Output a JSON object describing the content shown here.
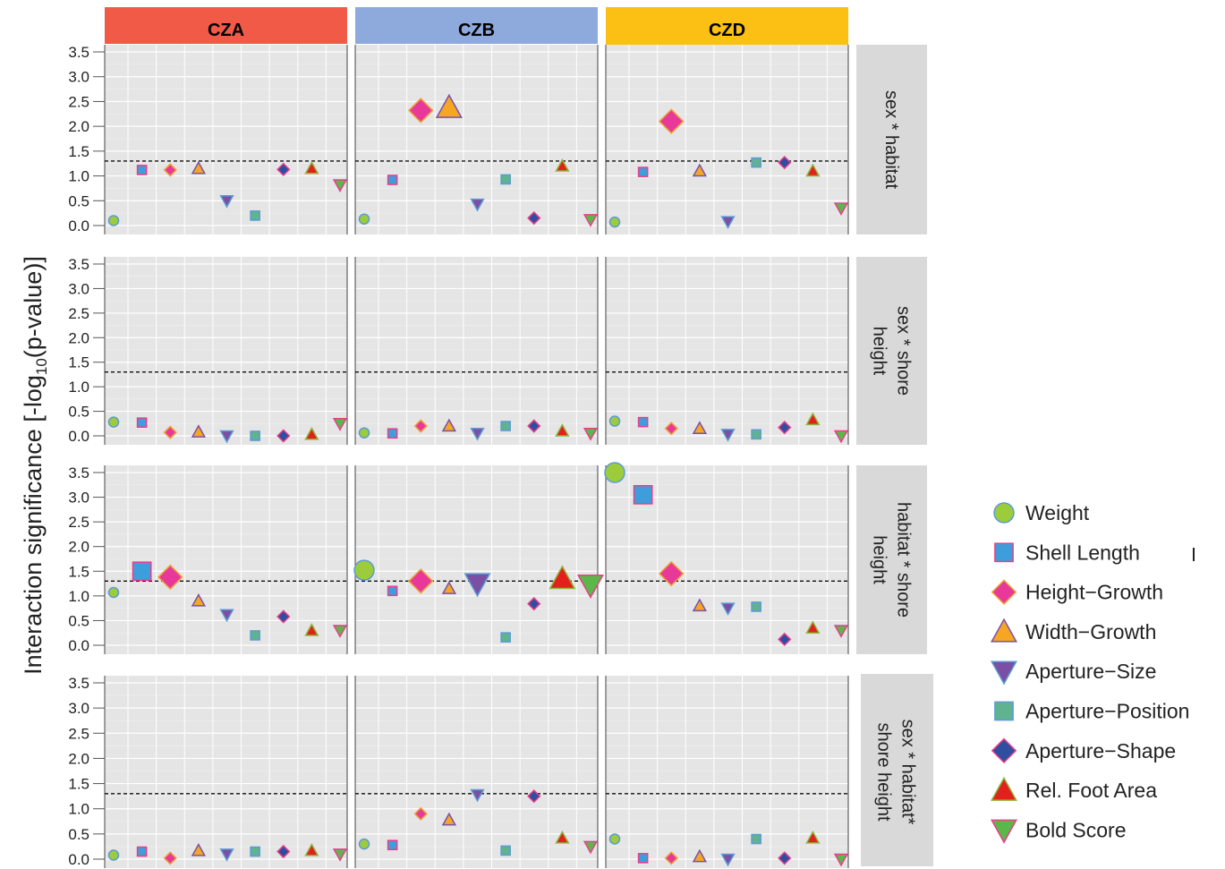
{
  "chart_data": {
    "type": "scatter",
    "ylabel_pre": "Interaction significance [-log",
    "ylabel_sub": "10",
    "ylabel_post": "(p-value)]",
    "ylim": [
      0,
      3.6
    ],
    "yticks": [
      "0.0",
      "0.5",
      "1.0",
      "1.5",
      "2.0",
      "2.5",
      "3.0",
      "3.5"
    ],
    "threshold": 1.3,
    "grid": true,
    "legend_position": "right",
    "columns": [
      {
        "label": "CZA",
        "color": "#f15a47"
      },
      {
        "label": "CZB",
        "color": "#8ea9db"
      },
      {
        "label": "CZD",
        "color": "#fbc013"
      }
    ],
    "rows": [
      {
        "label_lines": [
          "sex * habitat"
        ]
      },
      {
        "label_lines": [
          "sex * shore",
          "height"
        ]
      },
      {
        "label_lines": [
          "habitat * shore",
          "height"
        ]
      },
      {
        "label_lines": [
          "sex * habitat*",
          "shore height"
        ]
      }
    ],
    "traits": [
      {
        "name": "Weight",
        "shape": "circle",
        "fill": "#9ccc3c",
        "stroke": "#5b9bd5"
      },
      {
        "name": "Shell Length",
        "shape": "square",
        "fill": "#3e9edb",
        "stroke": "#e83e8c"
      },
      {
        "name": "Height−Growth",
        "shape": "diamond",
        "fill": "#e8399a",
        "stroke": "#f0a030"
      },
      {
        "name": "Width−Growth",
        "shape": "triangle-up",
        "fill": "#f5a623",
        "stroke": "#7a52a8"
      },
      {
        "name": "Aperture−Size",
        "shape": "triangle-down",
        "fill": "#7b4fa3",
        "stroke": "#5b9bd5"
      },
      {
        "name": "Aperture−Position",
        "shape": "square",
        "fill": "#5fb38f",
        "stroke": "#5b9bd5"
      },
      {
        "name": "Aperture−Shape",
        "shape": "diamond",
        "fill": "#2f4ea0",
        "stroke": "#e83e8c"
      },
      {
        "name": "Rel. Foot Area",
        "shape": "triangle-up",
        "fill": "#e3201b",
        "stroke": "#8db63c"
      },
      {
        "name": "Bold Score",
        "shape": "triangle-down",
        "fill": "#5ab849",
        "stroke": "#e83e8c"
      }
    ],
    "values": [
      [
        [
          0.1,
          1.12,
          1.12,
          1.15,
          0.5,
          0.2,
          1.13,
          1.15,
          0.82
        ],
        [
          0.13,
          0.92,
          2.32,
          2.38,
          0.43,
          0.93,
          0.15,
          1.2,
          0.12
        ],
        [
          0.07,
          1.08,
          2.1,
          1.1,
          0.08,
          1.27,
          1.27,
          1.1,
          0.35
        ]
      ],
      [
        [
          0.28,
          0.27,
          0.07,
          0.08,
          0.0,
          0.0,
          0.0,
          0.03,
          0.25
        ],
        [
          0.06,
          0.05,
          0.2,
          0.2,
          0.05,
          0.2,
          0.2,
          0.1,
          0.05
        ],
        [
          0.3,
          0.28,
          0.15,
          0.15,
          0.03,
          0.03,
          0.17,
          0.33,
          0.0
        ]
      ],
      [
        [
          1.07,
          1.5,
          1.38,
          0.9,
          0.62,
          0.2,
          0.58,
          0.3,
          0.3
        ],
        [
          1.52,
          1.1,
          1.3,
          1.15,
          1.25,
          0.16,
          0.84,
          1.35,
          1.22
        ],
        [
          3.5,
          3.05,
          1.45,
          0.8,
          0.75,
          0.78,
          0.12,
          0.35,
          0.3
        ]
      ],
      [
        [
          0.08,
          0.15,
          0.02,
          0.17,
          0.1,
          0.15,
          0.15,
          0.17,
          0.1
        ],
        [
          0.3,
          0.28,
          0.9,
          0.78,
          1.28,
          0.17,
          1.25,
          0.42,
          0.25
        ],
        [
          0.4,
          0.02,
          0.02,
          0.05,
          0.0,
          0.4,
          0.02,
          0.42,
          0.0
        ]
      ]
    ],
    "sizes": [
      [
        [
          1,
          1,
          1,
          1,
          1,
          1,
          1,
          1,
          1
        ],
        [
          1,
          1,
          2,
          2,
          1,
          1,
          1,
          1,
          1
        ],
        [
          1,
          1,
          2,
          1,
          1,
          1,
          1,
          1,
          1
        ]
      ],
      [
        [
          1,
          1,
          1,
          1,
          1,
          1,
          1,
          1,
          1
        ],
        [
          1,
          1,
          1,
          1,
          1,
          1,
          1,
          1,
          1
        ],
        [
          1,
          1,
          1,
          1,
          1,
          1,
          1,
          1,
          1
        ]
      ],
      [
        [
          1,
          2,
          2,
          1,
          1,
          1,
          1,
          1,
          1
        ],
        [
          2,
          1,
          2,
          1,
          2,
          1,
          1,
          2,
          2
        ],
        [
          2,
          2,
          2,
          1,
          1,
          1,
          1,
          1,
          1
        ]
      ],
      [
        [
          1,
          1,
          1,
          1,
          1,
          1,
          1,
          1,
          1
        ],
        [
          1,
          1,
          1,
          1,
          1,
          1,
          1,
          1,
          1
        ],
        [
          1,
          1,
          1,
          1,
          1,
          1,
          1,
          1,
          1
        ]
      ]
    ]
  }
}
